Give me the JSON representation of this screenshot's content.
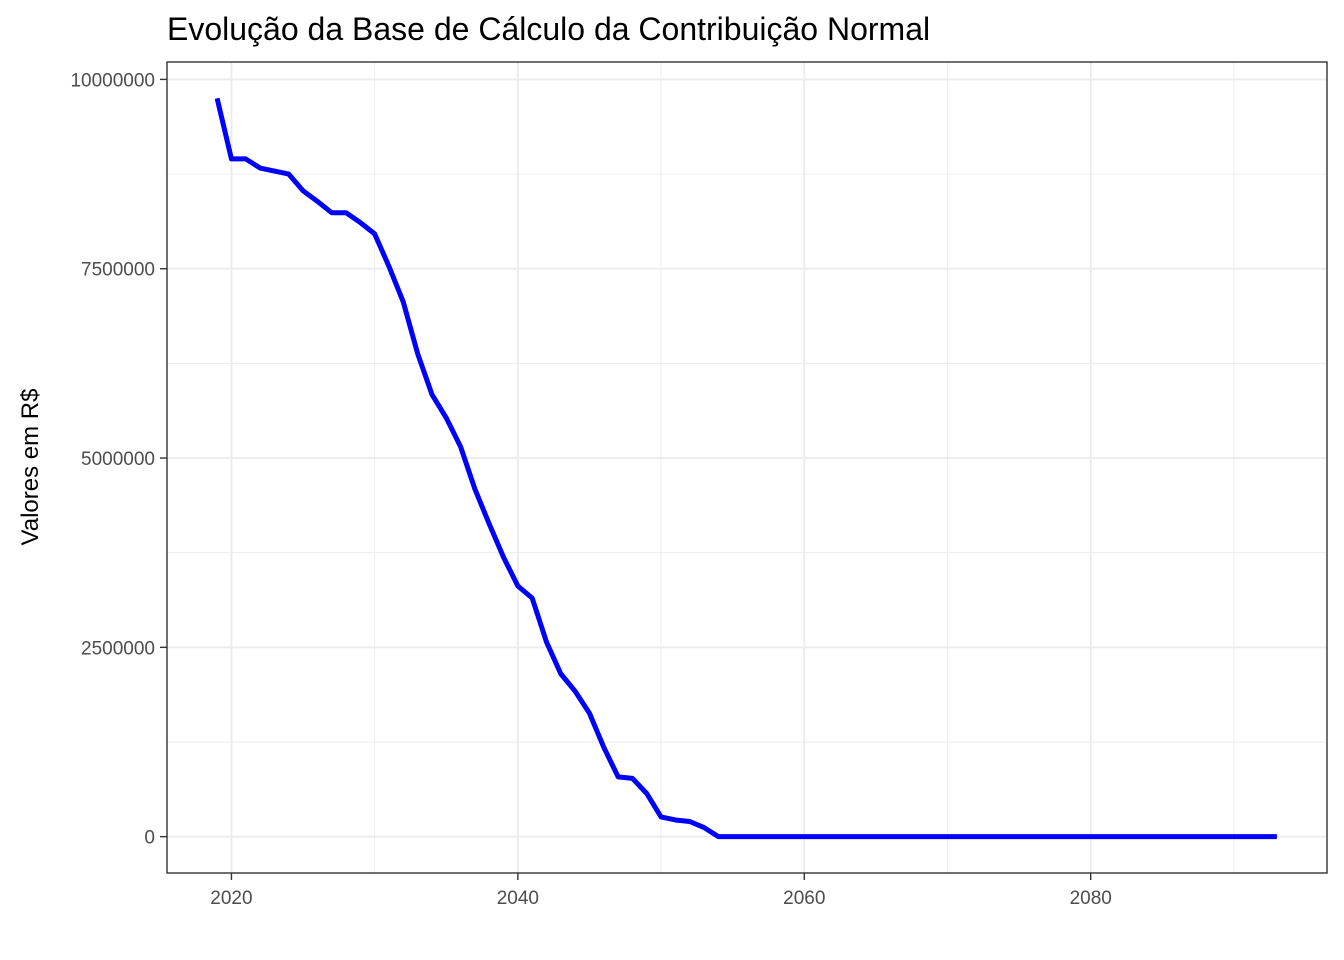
{
  "chart_data": {
    "type": "line",
    "title": "Evolução da Base de Cálculo da Contribuição Normal",
    "xlabel": "",
    "ylabel": "Valores em R$",
    "xlim": [
      2015.5,
      2096.5
    ],
    "ylim": [
      -480000,
      10230000
    ],
    "x_ticks": [
      2020,
      2040,
      2060,
      2080
    ],
    "x_tick_labels": [
      "2020",
      "2040",
      "2060",
      "2080"
    ],
    "y_ticks": [
      0,
      2500000,
      5000000,
      7500000,
      10000000
    ],
    "y_tick_labels": [
      "0",
      "2500000",
      "5000000",
      "7500000",
      "10000000"
    ],
    "grid": true,
    "legend": "none",
    "colors": {
      "line": "#0000ff",
      "grid": "#ebebeb",
      "panel_border": "#333333",
      "tick_text": "#4d4d4d"
    },
    "series": [
      {
        "x": [
          2019,
          2020,
          2021,
          2022,
          2023,
          2024,
          2025,
          2026,
          2027,
          2028,
          2029,
          2030,
          2031,
          2032,
          2033,
          2034,
          2035,
          2036,
          2037,
          2038,
          2039,
          2040,
          2041,
          2042,
          2043,
          2044,
          2045,
          2046,
          2047,
          2048,
          2049,
          2050,
          2051,
          2052,
          2053,
          2054,
          2055,
          2056,
          2057,
          2058,
          2059,
          2060,
          2061,
          2062,
          2063,
          2064,
          2065,
          2066,
          2067,
          2068,
          2069,
          2070,
          2071,
          2072,
          2073,
          2074,
          2075,
          2076,
          2077,
          2078,
          2079,
          2080,
          2081,
          2082,
          2083,
          2084,
          2085,
          2086,
          2087,
          2088,
          2089,
          2090,
          2091,
          2092,
          2093
        ],
        "values": [
          9750000,
          8950000,
          8950000,
          8830000,
          8790000,
          8750000,
          8530000,
          8390000,
          8240000,
          8240000,
          8110000,
          7960000,
          7530000,
          7060000,
          6380000,
          5840000,
          5530000,
          5150000,
          4590000,
          4130000,
          3690000,
          3310000,
          3150000,
          2570000,
          2150000,
          1920000,
          1630000,
          1180000,
          790000,
          770000,
          570000,
          260000,
          220000,
          200000,
          120000,
          0,
          0,
          0,
          0,
          0,
          0,
          0,
          0,
          0,
          0,
          0,
          0,
          0,
          0,
          0,
          0,
          0,
          0,
          0,
          0,
          0,
          0,
          0,
          0,
          0,
          0,
          0,
          0,
          0,
          0,
          0,
          0,
          0,
          0,
          0,
          0,
          0,
          0,
          0,
          0
        ]
      }
    ]
  }
}
